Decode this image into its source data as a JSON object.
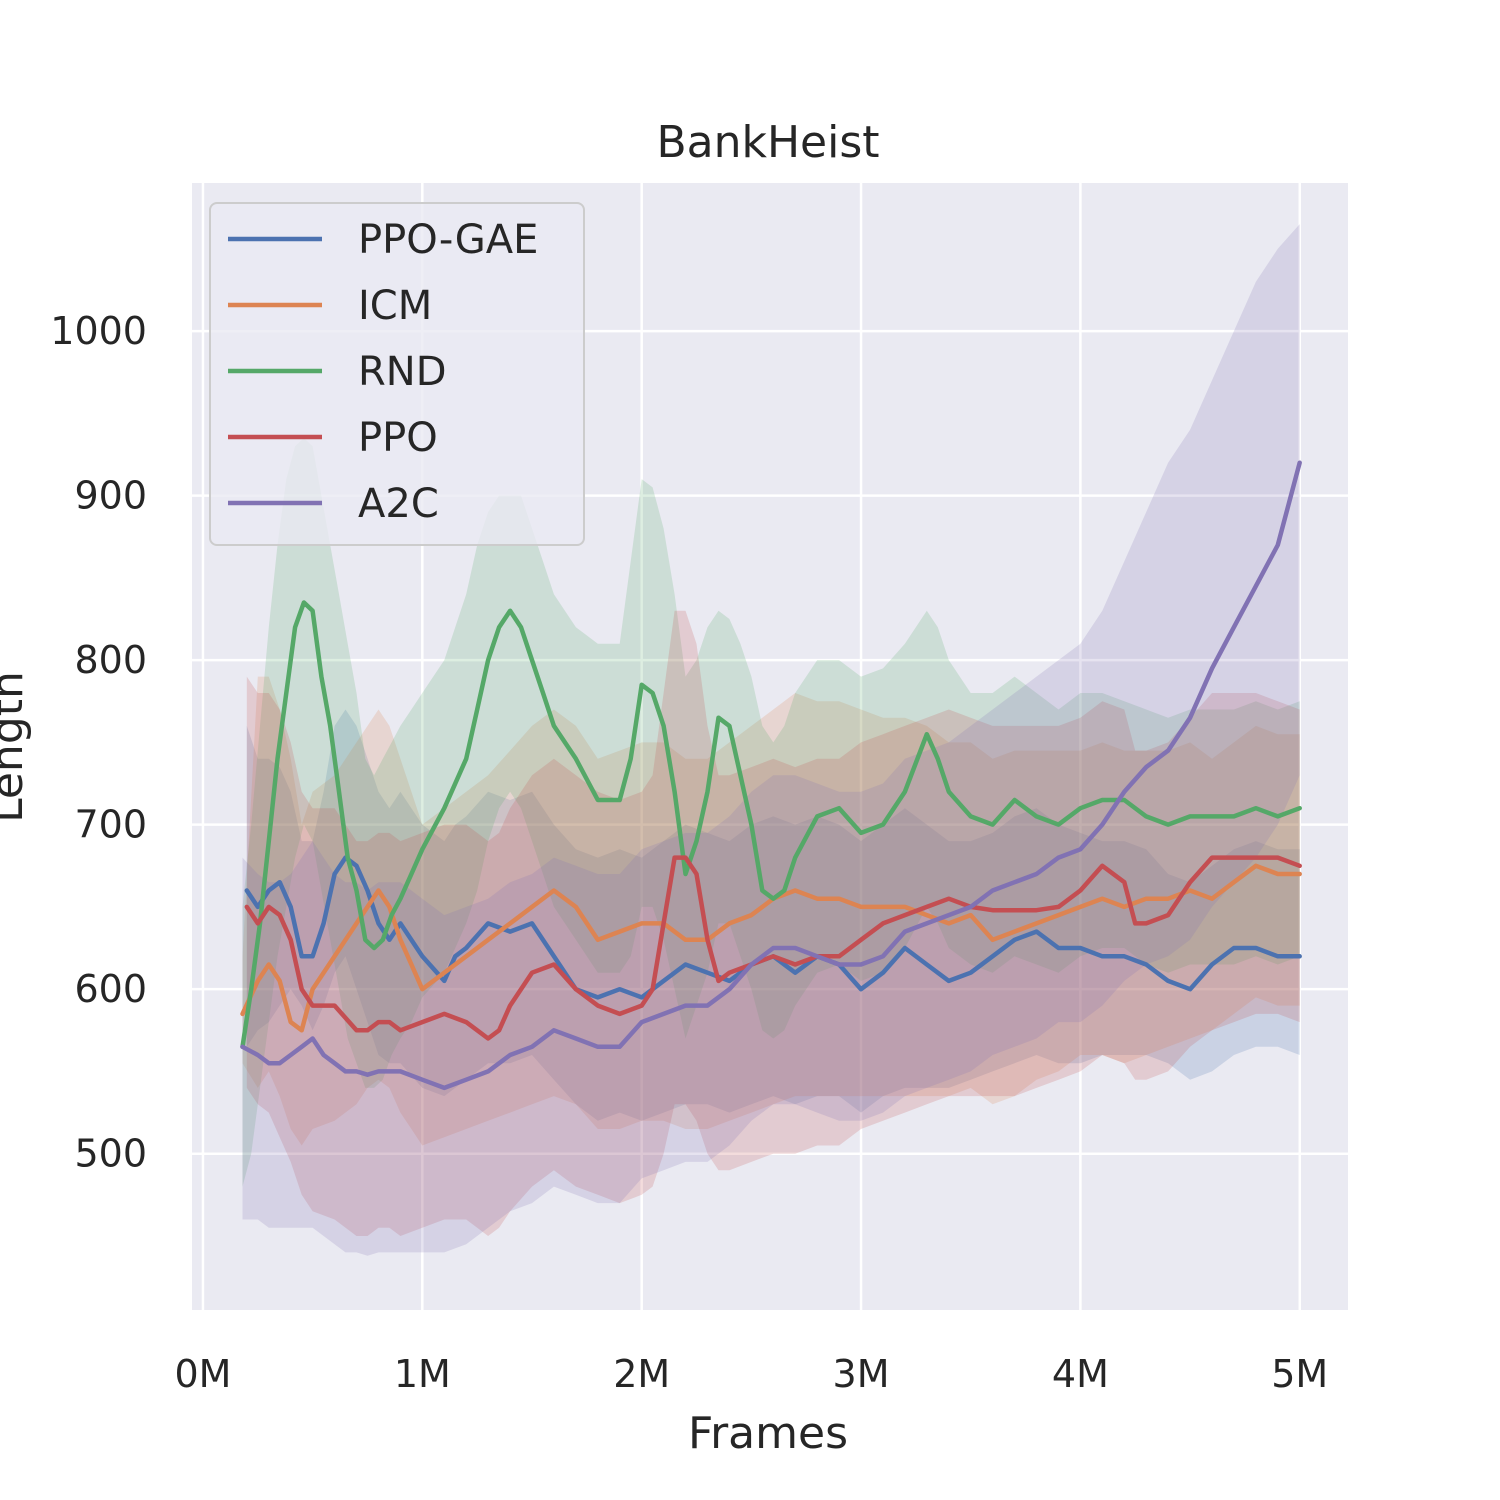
{
  "chart_data": {
    "type": "line",
    "title": "BankHeist",
    "xlabel": "Frames",
    "ylabel": "Length",
    "xlim": [
      -0.05,
      5.22
    ],
    "ylim": [
      405,
      1090
    ],
    "xticks": [
      0,
      1,
      2,
      3,
      4,
      5
    ],
    "xtick_labels": [
      "0M",
      "1M",
      "2M",
      "3M",
      "4M",
      "5M"
    ],
    "yticks": [
      500,
      600,
      700,
      800,
      900,
      1000
    ],
    "ytick_labels": [
      "500",
      "600",
      "700",
      "800",
      "900",
      "1000"
    ],
    "grid": true,
    "legend_position": "top-left",
    "x_units": "millions of frames",
    "series": [
      {
        "name": "PPO-GAE",
        "color": "#4c72b0",
        "x": [
          0.2,
          0.25,
          0.3,
          0.35,
          0.4,
          0.45,
          0.5,
          0.55,
          0.6,
          0.65,
          0.7,
          0.75,
          0.8,
          0.85,
          0.9,
          1.0,
          1.1,
          1.15,
          1.2,
          1.3,
          1.4,
          1.5,
          1.6,
          1.7,
          1.8,
          1.9,
          2.0,
          2.1,
          2.2,
          2.3,
          2.4,
          2.5,
          2.6,
          2.7,
          2.8,
          2.9,
          3.0,
          3.1,
          3.2,
          3.3,
          3.4,
          3.5,
          3.6,
          3.7,
          3.8,
          3.9,
          4.0,
          4.1,
          4.2,
          4.3,
          4.4,
          4.5,
          4.6,
          4.7,
          4.8,
          4.9,
          5.0
        ],
        "y": [
          660,
          650,
          660,
          665,
          650,
          620,
          620,
          640,
          670,
          680,
          675,
          660,
          640,
          630,
          640,
          620,
          605,
          620,
          625,
          640,
          635,
          640,
          620,
          600,
          595,
          600,
          595,
          605,
          615,
          610,
          605,
          615,
          620,
          610,
          620,
          615,
          600,
          610,
          625,
          615,
          605,
          610,
          620,
          630,
          635,
          625,
          625,
          620,
          620,
          615,
          605,
          600,
          615,
          625,
          625,
          620,
          620
        ],
        "lower": [
          565,
          575,
          580,
          590,
          600,
          590,
          575,
          590,
          610,
          620,
          600,
          580,
          560,
          555,
          555,
          540,
          535,
          540,
          545,
          555,
          555,
          560,
          545,
          530,
          520,
          525,
          520,
          525,
          530,
          530,
          525,
          530,
          535,
          530,
          535,
          535,
          525,
          535,
          540,
          540,
          540,
          545,
          550,
          555,
          560,
          555,
          555,
          560,
          560,
          560,
          555,
          545,
          550,
          560,
          565,
          565,
          560
        ],
        "upper": [
          760,
          740,
          740,
          735,
          720,
          690,
          690,
          720,
          760,
          770,
          760,
          740,
          720,
          710,
          720,
          700,
          690,
          700,
          705,
          720,
          715,
          720,
          700,
          685,
          680,
          685,
          680,
          690,
          700,
          695,
          690,
          700,
          705,
          700,
          705,
          700,
          690,
          700,
          710,
          700,
          690,
          690,
          695,
          705,
          710,
          700,
          695,
          690,
          690,
          685,
          670,
          665,
          675,
          685,
          690,
          685,
          685
        ]
      },
      {
        "name": "ICM",
        "color": "#dd8452",
        "x": [
          0.18,
          0.25,
          0.3,
          0.35,
          0.4,
          0.45,
          0.5,
          0.6,
          0.7,
          0.75,
          0.8,
          0.85,
          0.9,
          0.95,
          1.0,
          1.1,
          1.2,
          1.3,
          1.4,
          1.5,
          1.6,
          1.7,
          1.8,
          1.9,
          2.0,
          2.1,
          2.2,
          2.3,
          2.4,
          2.5,
          2.6,
          2.7,
          2.8,
          2.9,
          3.0,
          3.1,
          3.2,
          3.3,
          3.4,
          3.5,
          3.6,
          3.7,
          3.8,
          3.9,
          4.0,
          4.1,
          4.2,
          4.3,
          4.4,
          4.5,
          4.6,
          4.7,
          4.8,
          4.9,
          5.0
        ],
        "y": [
          585,
          605,
          615,
          605,
          580,
          575,
          600,
          620,
          640,
          650,
          660,
          650,
          630,
          615,
          600,
          610,
          620,
          630,
          640,
          650,
          660,
          650,
          630,
          635,
          640,
          640,
          630,
          630,
          640,
          645,
          655,
          660,
          655,
          655,
          650,
          650,
          650,
          645,
          640,
          645,
          630,
          635,
          640,
          645,
          650,
          655,
          650,
          655,
          655,
          660,
          655,
          665,
          675,
          670,
          670
        ],
        "lower": [
          555,
          540,
          550,
          535,
          515,
          505,
          515,
          520,
          530,
          540,
          545,
          540,
          525,
          515,
          505,
          510,
          515,
          520,
          525,
          530,
          535,
          530,
          515,
          515,
          520,
          520,
          515,
          515,
          520,
          525,
          530,
          535,
          535,
          535,
          535,
          535,
          535,
          535,
          535,
          540,
          530,
          535,
          545,
          550,
          560,
          560,
          555,
          560,
          565,
          570,
          575,
          585,
          595,
          590,
          590
        ],
        "upper": [
          620,
          790,
          790,
          770,
          740,
          700,
          720,
          730,
          750,
          760,
          770,
          760,
          740,
          720,
          700,
          710,
          720,
          730,
          745,
          760,
          770,
          760,
          740,
          745,
          750,
          750,
          740,
          740,
          750,
          760,
          770,
          780,
          775,
          775,
          770,
          765,
          765,
          760,
          750,
          750,
          740,
          745,
          745,
          745,
          745,
          750,
          745,
          745,
          745,
          750,
          740,
          750,
          760,
          755,
          755
        ]
      },
      {
        "name": "RND",
        "color": "#55a868",
        "x": [
          0.18,
          0.22,
          0.26,
          0.3,
          0.34,
          0.38,
          0.42,
          0.46,
          0.5,
          0.54,
          0.58,
          0.62,
          0.66,
          0.7,
          0.74,
          0.78,
          0.82,
          0.86,
          0.9,
          0.95,
          1.0,
          1.1,
          1.2,
          1.25,
          1.3,
          1.35,
          1.4,
          1.45,
          1.5,
          1.55,
          1.6,
          1.7,
          1.8,
          1.9,
          1.95,
          2.0,
          2.05,
          2.1,
          2.15,
          2.2,
          2.25,
          2.3,
          2.35,
          2.4,
          2.45,
          2.5,
          2.55,
          2.6,
          2.65,
          2.7,
          2.8,
          2.9,
          3.0,
          3.1,
          3.2,
          3.3,
          3.35,
          3.4,
          3.5,
          3.6,
          3.7,
          3.8,
          3.9,
          4.0,
          4.1,
          4.2,
          4.3,
          4.4,
          4.5,
          4.6,
          4.7,
          4.8,
          4.9,
          5.0
        ],
        "y": [
          565,
          600,
          640,
          690,
          740,
          780,
          820,
          835,
          830,
          790,
          760,
          720,
          680,
          660,
          630,
          625,
          630,
          645,
          655,
          670,
          685,
          710,
          740,
          770,
          800,
          820,
          830,
          820,
          800,
          780,
          760,
          740,
          715,
          715,
          740,
          785,
          780,
          760,
          720,
          670,
          690,
          720,
          765,
          760,
          730,
          700,
          660,
          655,
          660,
          680,
          705,
          710,
          695,
          700,
          720,
          755,
          740,
          720,
          705,
          700,
          715,
          705,
          700,
          710,
          715,
          715,
          705,
          700,
          705,
          705,
          705,
          710,
          705,
          710
        ],
        "lower": [
          480,
          500,
          540,
          580,
          620,
          650,
          680,
          700,
          690,
          660,
          630,
          600,
          570,
          555,
          540,
          540,
          545,
          560,
          570,
          580,
          595,
          610,
          640,
          660,
          690,
          710,
          720,
          710,
          690,
          670,
          650,
          630,
          610,
          610,
          620,
          650,
          650,
          630,
          600,
          570,
          590,
          610,
          640,
          640,
          620,
          600,
          575,
          570,
          575,
          590,
          610,
          615,
          605,
          610,
          625,
          650,
          640,
          625,
          615,
          610,
          620,
          615,
          610,
          620,
          625,
          625,
          615,
          610,
          615,
          615,
          615,
          620,
          615,
          620
        ],
        "upper": [
          650,
          700,
          760,
          820,
          870,
          910,
          930,
          935,
          930,
          900,
          870,
          840,
          810,
          780,
          740,
          730,
          740,
          750,
          760,
          770,
          780,
          800,
          840,
          870,
          890,
          900,
          900,
          900,
          880,
          860,
          840,
          820,
          810,
          810,
          860,
          910,
          905,
          880,
          840,
          790,
          800,
          820,
          830,
          825,
          810,
          790,
          760,
          750,
          760,
          780,
          800,
          800,
          790,
          795,
          810,
          830,
          820,
          800,
          780,
          780,
          790,
          780,
          770,
          780,
          780,
          775,
          770,
          765,
          770,
          770,
          770,
          775,
          770,
          775
        ]
      },
      {
        "name": "PPO",
        "color": "#c44e52",
        "x": [
          0.2,
          0.25,
          0.3,
          0.35,
          0.4,
          0.45,
          0.5,
          0.6,
          0.7,
          0.75,
          0.8,
          0.85,
          0.9,
          1.0,
          1.1,
          1.2,
          1.25,
          1.3,
          1.35,
          1.4,
          1.5,
          1.6,
          1.7,
          1.8,
          1.9,
          2.0,
          2.05,
          2.1,
          2.15,
          2.2,
          2.25,
          2.3,
          2.35,
          2.4,
          2.5,
          2.6,
          2.7,
          2.8,
          2.9,
          3.0,
          3.1,
          3.2,
          3.3,
          3.4,
          3.5,
          3.6,
          3.7,
          3.8,
          3.9,
          4.0,
          4.1,
          4.2,
          4.25,
          4.3,
          4.4,
          4.5,
          4.6,
          4.7,
          4.8,
          4.9,
          5.0
        ],
        "y": [
          650,
          640,
          650,
          645,
          630,
          600,
          590,
          590,
          575,
          575,
          580,
          580,
          575,
          580,
          585,
          580,
          575,
          570,
          575,
          590,
          610,
          615,
          600,
          590,
          585,
          590,
          600,
          640,
          680,
          680,
          670,
          630,
          605,
          610,
          615,
          620,
          615,
          620,
          620,
          630,
          640,
          645,
          650,
          655,
          650,
          648,
          648,
          648,
          650,
          660,
          675,
          665,
          640,
          640,
          645,
          665,
          680,
          680,
          680,
          680,
          675
        ],
        "lower": [
          540,
          530,
          525,
          510,
          495,
          475,
          465,
          460,
          450,
          450,
          455,
          455,
          450,
          455,
          460,
          460,
          455,
          450,
          455,
          465,
          480,
          490,
          480,
          475,
          470,
          475,
          480,
          500,
          530,
          530,
          520,
          500,
          490,
          490,
          495,
          500,
          500,
          505,
          505,
          515,
          520,
          525,
          530,
          535,
          535,
          535,
          535,
          540,
          545,
          550,
          560,
          555,
          545,
          545,
          550,
          565,
          575,
          580,
          585,
          585,
          580
        ],
        "upper": [
          790,
          780,
          780,
          770,
          750,
          720,
          710,
          710,
          690,
          690,
          695,
          695,
          690,
          695,
          700,
          700,
          695,
          690,
          695,
          710,
          730,
          740,
          730,
          720,
          715,
          720,
          730,
          780,
          830,
          830,
          810,
          760,
          730,
          730,
          735,
          740,
          735,
          740,
          740,
          750,
          755,
          760,
          765,
          770,
          765,
          760,
          760,
          760,
          760,
          765,
          775,
          770,
          745,
          745,
          750,
          765,
          780,
          780,
          780,
          775,
          770
        ]
      },
      {
        "name": "A2C",
        "color": "#8172b3",
        "x": [
          0.18,
          0.25,
          0.3,
          0.35,
          0.4,
          0.45,
          0.5,
          0.55,
          0.6,
          0.65,
          0.7,
          0.75,
          0.8,
          0.9,
          1.0,
          1.1,
          1.2,
          1.3,
          1.4,
          1.5,
          1.6,
          1.7,
          1.8,
          1.9,
          2.0,
          2.1,
          2.2,
          2.3,
          2.4,
          2.5,
          2.6,
          2.7,
          2.8,
          2.9,
          3.0,
          3.1,
          3.2,
          3.3,
          3.4,
          3.5,
          3.6,
          3.7,
          3.8,
          3.9,
          4.0,
          4.1,
          4.2,
          4.3,
          4.4,
          4.5,
          4.6,
          4.7,
          4.8,
          4.9,
          5.0
        ],
        "y": [
          565,
          560,
          555,
          555,
          560,
          565,
          570,
          560,
          555,
          550,
          550,
          548,
          550,
          550,
          545,
          540,
          545,
          550,
          560,
          565,
          575,
          570,
          565,
          565,
          580,
          585,
          590,
          590,
          600,
          615,
          625,
          625,
          620,
          615,
          615,
          620,
          635,
          640,
          645,
          650,
          660,
          665,
          670,
          680,
          685,
          700,
          720,
          735,
          745,
          765,
          795,
          820,
          845,
          870,
          920
        ],
        "lower": [
          460,
          460,
          455,
          455,
          455,
          455,
          455,
          450,
          445,
          440,
          440,
          438,
          440,
          440,
          440,
          440,
          445,
          455,
          465,
          470,
          480,
          475,
          470,
          470,
          485,
          490,
          495,
          495,
          505,
          520,
          530,
          530,
          525,
          520,
          520,
          525,
          535,
          540,
          545,
          550,
          560,
          565,
          570,
          580,
          580,
          590,
          605,
          615,
          620,
          630,
          650,
          665,
          680,
          700,
          730
        ],
        "upper": [
          680,
          670,
          665,
          665,
          670,
          680,
          690,
          680,
          670,
          665,
          665,
          660,
          665,
          665,
          655,
          645,
          650,
          655,
          665,
          670,
          680,
          675,
          670,
          670,
          685,
          690,
          695,
          695,
          705,
          720,
          730,
          730,
          725,
          720,
          720,
          725,
          740,
          745,
          750,
          760,
          770,
          780,
          790,
          800,
          810,
          830,
          860,
          890,
          920,
          940,
          970,
          1000,
          1030,
          1050,
          1065
        ]
      }
    ]
  }
}
